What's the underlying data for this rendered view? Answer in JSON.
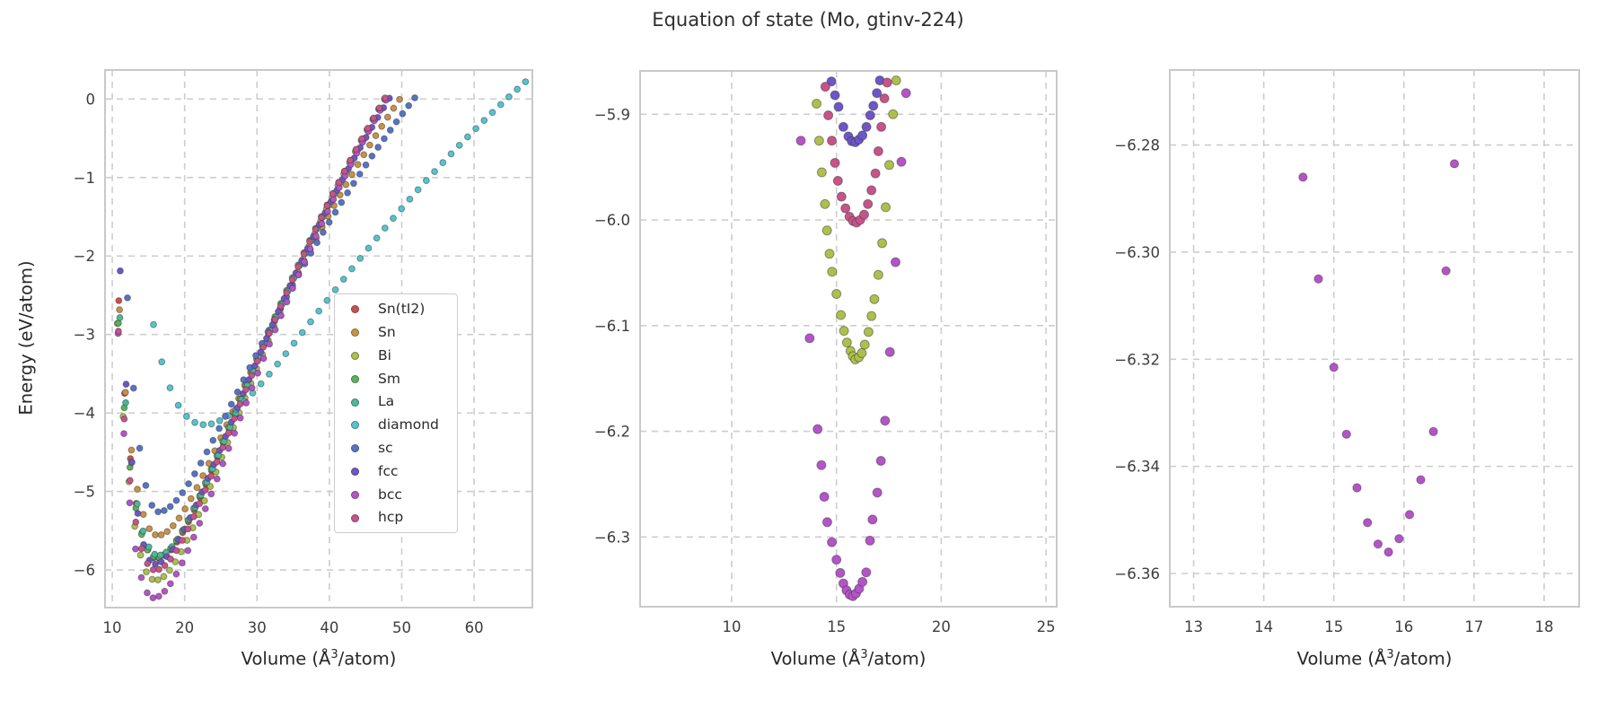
{
  "title": "Equation of state (Mo, gtinv-224)",
  "ylabel": "Energy (eV/atom)",
  "xlabel": {
    "pre": "Volume (Å",
    "sup": "3",
    "post": "/atom)"
  },
  "style": {
    "grid_color": "#cdcdcd",
    "spine_color": "#c9c9c9",
    "tick_color": "#3d3d3d",
    "marker_edge": "rgba(55,55,55,0.5)"
  },
  "palette": {
    "Sn(tI2)": "#c9504e",
    "Sn": "#c99246",
    "Bi": "#aec04b",
    "Sm": "#59b35a",
    "La": "#4bb89c",
    "diamond": "#53c5ce",
    "sc": "#5574c7",
    "fcc": "#6e55c8",
    "bcc": "#b653c9",
    "hcp": "#c85389"
  },
  "legend_entries": [
    "Sn(tI2)",
    "Sn",
    "Bi",
    "Sm",
    "La",
    "diamond",
    "sc",
    "fcc",
    "bcc",
    "hcp"
  ],
  "chart_data": [
    {
      "type": "scatter",
      "name": "overview",
      "title": "Equation of state (Mo, gtinv-224)",
      "xlabel": "Volume (Å3/atom)",
      "ylabel": "Energy (eV/atom)",
      "xlim": [
        9.0,
        68.05
      ],
      "ylim": [
        -6.48,
        0.37
      ],
      "xticks": [
        10,
        20,
        30,
        40,
        50,
        60
      ],
      "xtick_labels": [
        "10",
        "20",
        "30",
        "40",
        "50",
        "60"
      ],
      "yticks": [
        0,
        -1,
        -2,
        -3,
        -4,
        -5,
        -6
      ],
      "ytick_labels": [
        "0",
        "−1",
        "−2",
        "−3",
        "−4",
        "−5",
        "−6"
      ],
      "grid": true,
      "legend_position": "lower right",
      "marker_radius": 3.4,
      "series": [
        {
          "name": "Sn(tI2)",
          "color": "#c9504e",
          "eos": {
            "V0": 16.2,
            "E0": -5.86,
            "Ac": 36.0,
            "Ae": 22.2,
            "Vstart": 10.9,
            "Vend": 47.8,
            "n": 47
          }
        },
        {
          "name": "Sn",
          "color": "#c99246",
          "eos": {
            "V0": 16.3,
            "E0": -5.56,
            "Ac": 32.0,
            "Ae": 20.2,
            "Vstart": 11.0,
            "Vend": 49.7,
            "n": 48
          }
        },
        {
          "name": "Bi",
          "color": "#aec04b",
          "eos": {
            "V0": 15.95,
            "E0": -6.132,
            "Ac": 35.2,
            "Ae": 22.9,
            "Vstart": 10.7,
            "Vend": 47.6,
            "n": 47
          }
        },
        {
          "name": "Sm",
          "color": "#59b35a",
          "eos": {
            "V0": 16.1,
            "E0": -5.845,
            "Ac": 33.0,
            "Ae": 22.0,
            "Vstart": 10.85,
            "Vend": 47.7,
            "n": 47
          }
        },
        {
          "name": "La",
          "color": "#4bb89c",
          "eos": {
            "V0": 16.35,
            "E0": -5.815,
            "Ac": 34.0,
            "Ae": 22.2,
            "Vstart": 11.05,
            "Vend": 47.9,
            "n": 47
          }
        },
        {
          "name": "diamond",
          "color": "#53c5ce",
          "eos": {
            "V0": 22.8,
            "E0": -4.15,
            "Ac": 16.0,
            "Ae": 16.6,
            "Vstart": 15.7,
            "Vend": 67.1,
            "n": 46
          }
        },
        {
          "name": "sc",
          "color": "#5574c7",
          "eos": {
            "V0": 16.4,
            "E0": -5.26,
            "Ac": 54.0,
            "Ae": 18.4,
            "Vstart": 12.1,
            "Vend": 51.8,
            "n": 48
          }
        },
        {
          "name": "fcc",
          "color": "#6e55c8",
          "eos": {
            "V0": 15.85,
            "E0": -5.926,
            "Ac": 52.0,
            "Ae": 21.6,
            "Vstart": 11.1,
            "Vend": 48.3,
            "n": 47
          }
        },
        {
          "name": "bcc",
          "color": "#b653c9",
          "eos": {
            "V0": 15.7,
            "E0": -6.356,
            "Ac": 42.0,
            "Ae": 23.1,
            "Vstart": 10.8,
            "Vend": 47.8,
            "n": 47
          }
        },
        {
          "name": "hcp",
          "color": "#c85389",
          "eos": {
            "V0": 15.95,
            "E0": -6.003,
            "Ac": 35.5,
            "Ae": 22.4,
            "Vstart": 10.85,
            "Vend": 47.7,
            "n": 47
          }
        }
      ]
    },
    {
      "type": "scatter",
      "name": "zoom-mid",
      "xlabel": "Volume (Å3/atom)",
      "xlim": [
        5.63,
        25.51
      ],
      "ylim": [
        -6.366,
        -5.859
      ],
      "xticks": [
        10,
        15,
        20,
        25
      ],
      "xtick_labels": [
        "10",
        "15",
        "20",
        "25"
      ],
      "yticks": [
        -5.9,
        -6.0,
        -6.1,
        -6.2,
        -6.3
      ],
      "ytick_labels": [
        "−5.9",
        "−6.0",
        "−6.1",
        "−6.2",
        "−6.3"
      ],
      "grid": true,
      "marker_radius": 5.0,
      "series": [
        {
          "name": "Bi",
          "color": "#aec04b",
          "points": [
            [
              14.05,
              -5.89
            ],
            [
              14.17,
              -5.925
            ],
            [
              14.3,
              -5.955
            ],
            [
              14.45,
              -5.985
            ],
            [
              14.55,
              -6.01
            ],
            [
              14.67,
              -6.032
            ],
            [
              14.79,
              -6.049
            ],
            [
              15.0,
              -6.07
            ],
            [
              15.21,
              -6.09
            ],
            [
              15.36,
              -6.105
            ],
            [
              15.5,
              -6.116
            ],
            [
              15.67,
              -6.124
            ],
            [
              15.78,
              -6.129
            ],
            [
              15.9,
              -6.132
            ],
            [
              16.07,
              -6.13
            ],
            [
              16.21,
              -6.126
            ],
            [
              16.35,
              -6.118
            ],
            [
              16.53,
              -6.106
            ],
            [
              16.67,
              -6.091
            ],
            [
              16.81,
              -6.075
            ],
            [
              17.0,
              -6.052
            ],
            [
              17.18,
              -6.022
            ],
            [
              17.35,
              -5.988
            ],
            [
              17.52,
              -5.948
            ],
            [
              17.7,
              -5.9
            ],
            [
              17.85,
              -5.868
            ]
          ]
        },
        {
          "name": "fcc",
          "color": "#6e55c8",
          "points": [
            [
              14.76,
              -5.869
            ],
            [
              14.93,
              -5.882
            ],
            [
              15.1,
              -5.893
            ],
            [
              15.33,
              -5.912
            ],
            [
              15.57,
              -5.921
            ],
            [
              15.73,
              -5.9255
            ],
            [
              15.9,
              -5.9265
            ],
            [
              16.07,
              -5.924
            ],
            [
              16.24,
              -5.92
            ],
            [
              16.43,
              -5.912
            ],
            [
              16.61,
              -5.901
            ],
            [
              16.76,
              -5.892
            ],
            [
              16.93,
              -5.88
            ],
            [
              17.07,
              -5.868
            ]
          ]
        },
        {
          "name": "bcc",
          "color": "#b653c9",
          "points": [
            [
              13.3,
              -5.925
            ],
            [
              13.72,
              -6.112
            ],
            [
              14.1,
              -6.198
            ],
            [
              14.28,
              -6.232
            ],
            [
              14.42,
              -6.262
            ],
            [
              14.56,
              -6.286
            ],
            [
              14.78,
              -6.305
            ],
            [
              15.0,
              -6.3215
            ],
            [
              15.18,
              -6.334
            ],
            [
              15.33,
              -6.344
            ],
            [
              15.48,
              -6.3505
            ],
            [
              15.63,
              -6.3545
            ],
            [
              15.78,
              -6.356
            ],
            [
              15.93,
              -6.3535
            ],
            [
              16.08,
              -6.349
            ],
            [
              16.24,
              -6.3425
            ],
            [
              16.42,
              -6.3335
            ],
            [
              16.6,
              -6.3035
            ],
            [
              16.72,
              -6.2835
            ],
            [
              16.95,
              -6.258
            ],
            [
              17.12,
              -6.228
            ],
            [
              17.32,
              -6.19
            ],
            [
              17.55,
              -6.125
            ],
            [
              17.82,
              -6.04
            ],
            [
              18.1,
              -5.945
            ],
            [
              18.32,
              -5.88
            ]
          ]
        },
        {
          "name": "hcp",
          "color": "#c85389",
          "points": [
            [
              14.47,
              -5.874
            ],
            [
              14.61,
              -5.901
            ],
            [
              14.78,
              -5.925
            ],
            [
              14.93,
              -5.946
            ],
            [
              15.07,
              -5.963
            ],
            [
              15.24,
              -5.978
            ],
            [
              15.43,
              -5.989
            ],
            [
              15.62,
              -5.997
            ],
            [
              15.79,
              -6.001
            ],
            [
              15.96,
              -6.0025
            ],
            [
              16.13,
              -6.0
            ],
            [
              16.32,
              -5.995
            ],
            [
              16.5,
              -5.985
            ],
            [
              16.67,
              -5.972
            ],
            [
              16.86,
              -5.956
            ],
            [
              17.0,
              -5.935
            ],
            [
              17.14,
              -5.912
            ],
            [
              17.29,
              -5.885
            ],
            [
              17.42,
              -5.87
            ]
          ]
        }
      ]
    },
    {
      "type": "scatter",
      "name": "zoom-fine",
      "xlabel": "Volume (Å3/atom)",
      "xlim": [
        12.66,
        18.5
      ],
      "ylim": [
        -6.3662,
        -6.266
      ],
      "xticks": [
        13,
        14,
        15,
        16,
        17,
        18
      ],
      "xtick_labels": [
        "13",
        "14",
        "15",
        "16",
        "17",
        "18"
      ],
      "yticks": [
        -6.28,
        -6.3,
        -6.32,
        -6.34,
        -6.36
      ],
      "ytick_labels": [
        "−6.28",
        "−6.30",
        "−6.32",
        "−6.34",
        "−6.36"
      ],
      "grid": true,
      "marker_radius": 4.6,
      "series": [
        {
          "name": "bcc",
          "color": "#b653c9",
          "points": [
            [
              14.56,
              -6.286
            ],
            [
              14.78,
              -6.305
            ],
            [
              15.0,
              -6.3215
            ],
            [
              15.18,
              -6.334
            ],
            [
              15.33,
              -6.344
            ],
            [
              15.48,
              -6.3505
            ],
            [
              15.63,
              -6.3545
            ],
            [
              15.78,
              -6.356
            ],
            [
              15.93,
              -6.3535
            ],
            [
              16.08,
              -6.349
            ],
            [
              16.24,
              -6.3425
            ],
            [
              16.42,
              -6.3335
            ],
            [
              16.6,
              -6.3035
            ],
            [
              16.72,
              -6.2835
            ]
          ]
        }
      ]
    }
  ]
}
